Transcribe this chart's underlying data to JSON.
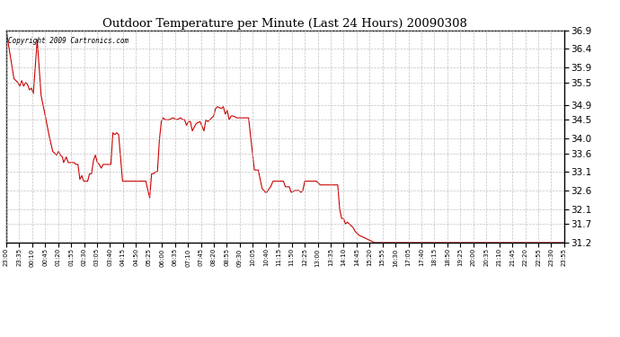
{
  "title": "Outdoor Temperature per Minute (Last 24 Hours) 20090308",
  "copyright_text": "Copyright 2009 Cartronics.com",
  "line_color": "#cc0000",
  "background_color": "#ffffff",
  "plot_bg_color": "#ffffff",
  "grid_color": "#aaaaaa",
  "grid_style": "--",
  "ylim": [
    31.2,
    36.9
  ],
  "yticks": [
    31.2,
    31.7,
    32.1,
    32.6,
    33.1,
    33.6,
    34.0,
    34.5,
    34.9,
    35.5,
    35.9,
    36.4,
    36.9
  ],
  "xtick_labels": [
    "23:00",
    "23:35",
    "00:10",
    "00:45",
    "01:20",
    "01:55",
    "02:30",
    "03:05",
    "03:40",
    "04:15",
    "04:50",
    "05:25",
    "06:00",
    "06:35",
    "07:10",
    "07:45",
    "08:20",
    "08:55",
    "09:30",
    "10:05",
    "10:40",
    "11:15",
    "11:50",
    "12:25",
    "13:00",
    "13:35",
    "14:10",
    "14:45",
    "15:20",
    "15:55",
    "16:30",
    "17:05",
    "17:40",
    "18:15",
    "18:50",
    "19:25",
    "20:00",
    "20:35",
    "21:10",
    "21:45",
    "22:20",
    "22:55",
    "23:30",
    "23:55"
  ],
  "n_points": 1440,
  "key_points": [
    [
      0,
      36.9
    ],
    [
      20,
      35.6
    ],
    [
      30,
      35.5
    ],
    [
      35,
      35.4
    ],
    [
      40,
      35.55
    ],
    [
      45,
      35.4
    ],
    [
      50,
      35.5
    ],
    [
      55,
      35.45
    ],
    [
      60,
      35.3
    ],
    [
      65,
      35.35
    ],
    [
      70,
      35.2
    ],
    [
      80,
      36.65
    ],
    [
      90,
      35.15
    ],
    [
      100,
      34.65
    ],
    [
      110,
      34.1
    ],
    [
      120,
      33.65
    ],
    [
      125,
      33.6
    ],
    [
      130,
      33.55
    ],
    [
      135,
      33.65
    ],
    [
      140,
      33.55
    ],
    [
      145,
      33.5
    ],
    [
      148,
      33.35
    ],
    [
      155,
      33.5
    ],
    [
      160,
      33.35
    ],
    [
      165,
      33.35
    ],
    [
      170,
      33.35
    ],
    [
      175,
      33.35
    ],
    [
      180,
      33.3
    ],
    [
      185,
      33.3
    ],
    [
      190,
      32.9
    ],
    [
      195,
      33.0
    ],
    [
      200,
      32.85
    ],
    [
      210,
      32.85
    ],
    [
      215,
      33.05
    ],
    [
      220,
      33.05
    ],
    [
      225,
      33.4
    ],
    [
      230,
      33.55
    ],
    [
      235,
      33.35
    ],
    [
      240,
      33.3
    ],
    [
      245,
      33.2
    ],
    [
      250,
      33.3
    ],
    [
      255,
      33.3
    ],
    [
      260,
      33.3
    ],
    [
      265,
      33.3
    ],
    [
      270,
      33.3
    ],
    [
      275,
      34.15
    ],
    [
      280,
      34.1
    ],
    [
      285,
      34.15
    ],
    [
      290,
      34.1
    ],
    [
      300,
      32.85
    ],
    [
      305,
      32.85
    ],
    [
      310,
      32.85
    ],
    [
      315,
      32.85
    ],
    [
      320,
      32.85
    ],
    [
      325,
      32.85
    ],
    [
      335,
      32.85
    ],
    [
      340,
      32.85
    ],
    [
      350,
      32.85
    ],
    [
      355,
      32.85
    ],
    [
      360,
      32.85
    ],
    [
      370,
      32.4
    ],
    [
      375,
      33.05
    ],
    [
      380,
      33.05
    ],
    [
      385,
      33.1
    ],
    [
      390,
      33.1
    ],
    [
      395,
      33.95
    ],
    [
      400,
      34.45
    ],
    [
      405,
      34.55
    ],
    [
      410,
      34.5
    ],
    [
      420,
      34.5
    ],
    [
      430,
      34.55
    ],
    [
      440,
      34.5
    ],
    [
      450,
      34.55
    ],
    [
      455,
      34.5
    ],
    [
      460,
      34.5
    ],
    [
      465,
      34.35
    ],
    [
      470,
      34.45
    ],
    [
      475,
      34.45
    ],
    [
      480,
      34.2
    ],
    [
      490,
      34.4
    ],
    [
      500,
      34.45
    ],
    [
      510,
      34.2
    ],
    [
      515,
      34.5
    ],
    [
      520,
      34.45
    ],
    [
      525,
      34.5
    ],
    [
      535,
      34.6
    ],
    [
      540,
      34.8
    ],
    [
      545,
      34.85
    ],
    [
      555,
      34.8
    ],
    [
      560,
      34.85
    ],
    [
      565,
      34.65
    ],
    [
      570,
      34.75
    ],
    [
      575,
      34.5
    ],
    [
      580,
      34.6
    ],
    [
      585,
      34.6
    ],
    [
      595,
      34.55
    ],
    [
      600,
      34.55
    ],
    [
      610,
      34.55
    ],
    [
      620,
      34.55
    ],
    [
      625,
      34.55
    ],
    [
      640,
      33.15
    ],
    [
      645,
      33.15
    ],
    [
      650,
      33.15
    ],
    [
      660,
      32.65
    ],
    [
      665,
      32.6
    ],
    [
      668,
      32.55
    ],
    [
      672,
      32.55
    ],
    [
      678,
      32.65
    ],
    [
      682,
      32.7
    ],
    [
      688,
      32.85
    ],
    [
      692,
      32.85
    ],
    [
      700,
      32.85
    ],
    [
      705,
      32.85
    ],
    [
      710,
      32.85
    ],
    [
      715,
      32.85
    ],
    [
      720,
      32.7
    ],
    [
      725,
      32.7
    ],
    [
      730,
      32.7
    ],
    [
      735,
      32.55
    ],
    [
      745,
      32.6
    ],
    [
      755,
      32.6
    ],
    [
      760,
      32.55
    ],
    [
      765,
      32.6
    ],
    [
      770,
      32.85
    ],
    [
      775,
      32.85
    ],
    [
      780,
      32.85
    ],
    [
      785,
      32.85
    ],
    [
      790,
      32.85
    ],
    [
      800,
      32.85
    ],
    [
      810,
      32.75
    ],
    [
      820,
      32.75
    ],
    [
      830,
      32.75
    ],
    [
      840,
      32.75
    ],
    [
      850,
      32.75
    ],
    [
      855,
      32.75
    ],
    [
      860,
      32.1
    ],
    [
      865,
      31.85
    ],
    [
      870,
      31.85
    ],
    [
      875,
      31.7
    ],
    [
      880,
      31.75
    ],
    [
      885,
      31.7
    ],
    [
      890,
      31.65
    ],
    [
      895,
      31.6
    ],
    [
      900,
      31.5
    ],
    [
      910,
      31.4
    ],
    [
      920,
      31.35
    ],
    [
      930,
      31.3
    ],
    [
      940,
      31.25
    ],
    [
      950,
      31.2
    ]
  ]
}
